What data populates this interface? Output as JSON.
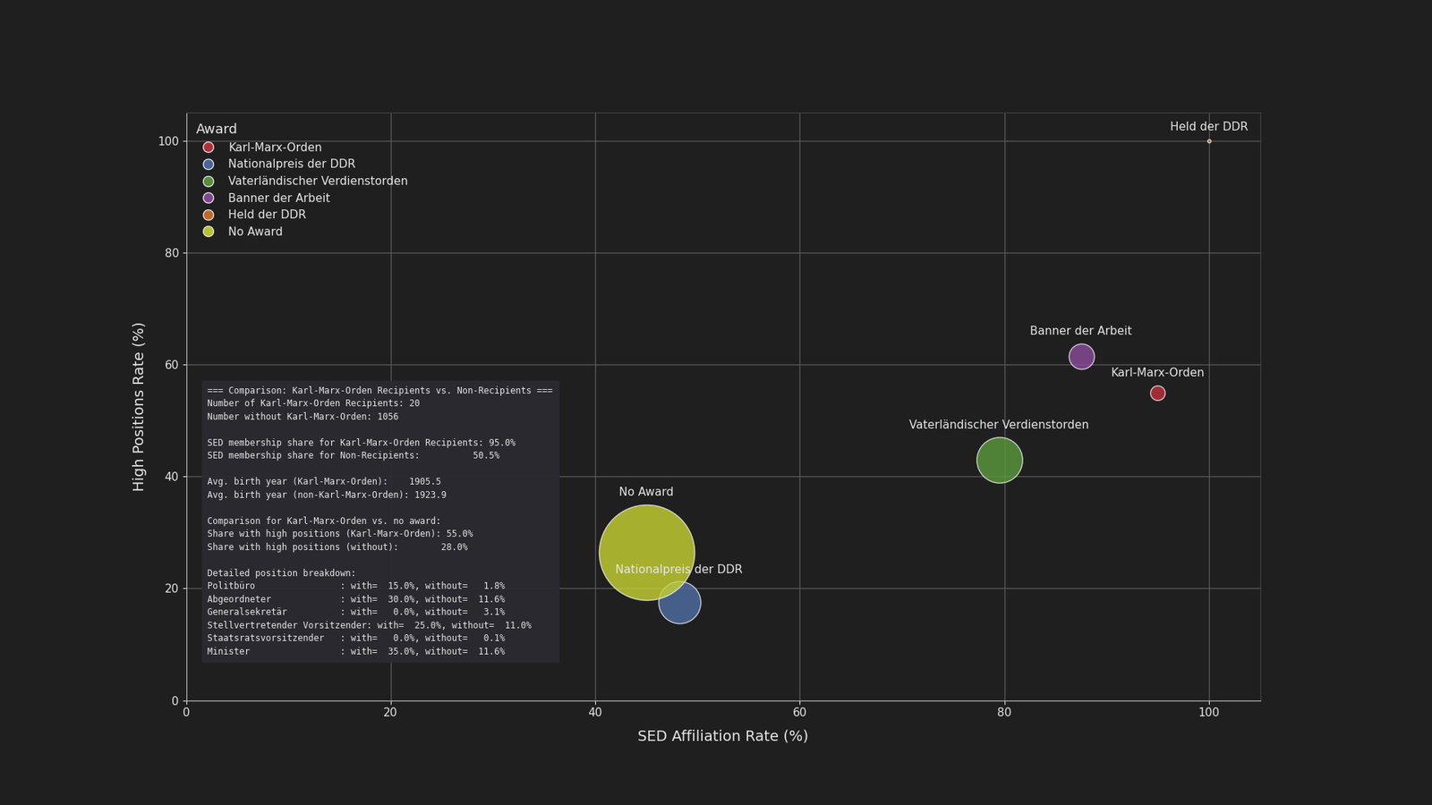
{
  "chart_data": {
    "type": "scatter",
    "x_label": "SED Affiliation Rate (%)",
    "y_label": "High Positions Rate (%)",
    "xlim": [
      0,
      105
    ],
    "xticks": [
      0,
      20,
      40,
      60,
      80,
      100
    ],
    "ylim": [
      0,
      105
    ],
    "yticks": [
      0,
      20,
      40,
      60,
      80,
      100
    ],
    "grid": true,
    "legend": "upper left",
    "legend_title": "Award",
    "data_labels": true,
    "series": [
      {
        "name": "Karl-Marx-Orden",
        "color": "#c4303c",
        "x": [
          95.0
        ],
        "y": [
          55.0
        ],
        "sizes": [
          20
        ]
      },
      {
        "name": "Nationalpreis der DDR",
        "color": "#4f6fa6",
        "x": [
          48.2
        ],
        "y": [
          17.5
        ],
        "sizes": [
          165
        ]
      },
      {
        "name": "Vaterländischer Verdienstorden",
        "color": "#5c9a3c",
        "x": [
          79.5
        ],
        "y": [
          43.0
        ],
        "sizes": [
          195
        ]
      },
      {
        "name": "Banner der Arbeit",
        "color": "#8c4c9c",
        "x": [
          87.5
        ],
        "y": [
          61.5
        ],
        "sizes": [
          60
        ]
      },
      {
        "name": "Held der DDR",
        "color": "#d2722c",
        "x": [
          100.0
        ],
        "y": [
          100.0
        ],
        "sizes": [
          1
        ]
      },
      {
        "name": "No Award",
        "color": "#cad432",
        "x": [
          45.0
        ],
        "y": [
          26.5
        ],
        "sizes": [
          850
        ]
      }
    ],
    "annotation": "=== Comparison: Karl-Marx-Orden Recipients vs. Non-Recipients ===\nNumber of Karl-Marx-Orden Recipients: 20\nNumber without Karl-Marx-Orden: 1056\n\nSED membership share for Karl-Marx-Orden Recipients: 95.0%\nSED membership share for Non-Recipients:          50.5%\n\nAvg. birth year (Karl-Marx-Orden):    1905.5\nAvg. birth year (non-Karl-Marx-Orden): 1923.9\n\nComparison for Karl-Marx-Orden vs. no award:\nShare with high positions (Karl-Marx-Orden): 55.0%\nShare with high positions (without):        28.0%\n\nDetailed position breakdown:\nPolitbüro                : with=  15.0%, without=   1.8%\nAbgeordneter             : with=  30.0%, without=  11.6%\nGeneralsekretär          : with=   0.0%, without=   3.1%\nStellvertretender Vorsitzender: with=  25.0%, without=  11.0%\nStaatsratsvorsitzender   : with=   0.0%, without=   0.1%\nMinister                 : with=  35.0%, without=  11.6%"
  }
}
